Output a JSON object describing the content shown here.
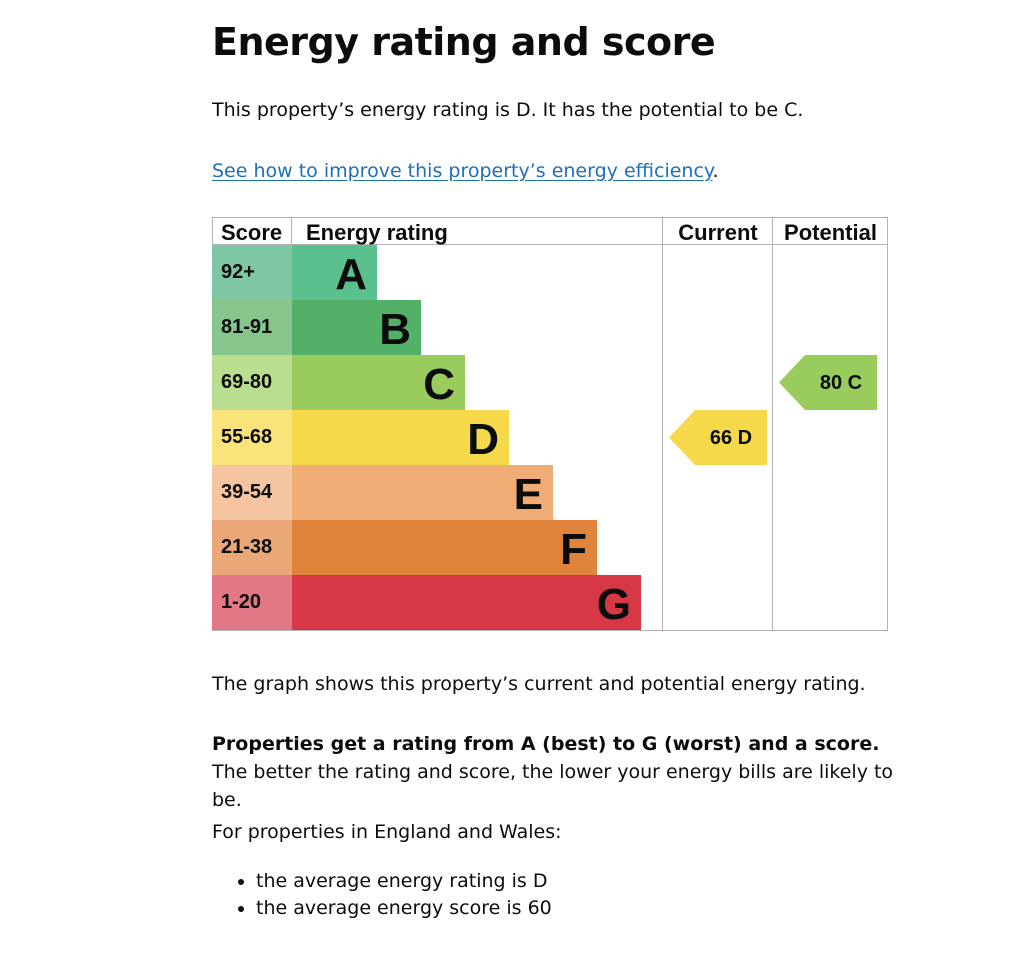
{
  "page": {
    "title": "Energy rating and score",
    "intro": "This property’s energy rating is D. It has the potential to be C.",
    "improve_link": "See how to improve this property’s energy efficiency",
    "improve_link_suffix": ".",
    "graph_caption": "The graph shows this property’s current and potential energy rating.",
    "rating_bold": "Properties get a rating from A (best) to G (worst) and a score.",
    "rating_rest": " The better the rating and score, the lower your energy bills are likely to be.",
    "region_intro": "For properties in England and Wales:",
    "averages": [
      "the average energy rating is D",
      "the average energy score is 60"
    ]
  },
  "chart_data": {
    "type": "bar",
    "headers": {
      "score": "Score",
      "rating": "Energy rating",
      "current": "Current",
      "potential": "Potential"
    },
    "bands": [
      {
        "letter": "A",
        "score": "92+",
        "color": "#5ac18e",
        "score_color": "#7ec6a4"
      },
      {
        "letter": "B",
        "score": "81-91",
        "color": "#52b069",
        "score_color": "#86c58c"
      },
      {
        "letter": "C",
        "score": "69-80",
        "color": "#99cc5c",
        "score_color": "#bade90"
      },
      {
        "letter": "D",
        "score": "55-68",
        "color": "#f6d94a",
        "score_color": "#fbe37c"
      },
      {
        "letter": "E",
        "score": "39-54",
        "color": "#efad75",
        "score_color": "#f4c5a0"
      },
      {
        "letter": "F",
        "score": "21-38",
        "color": "#e0843c",
        "score_color": "#eaa777"
      },
      {
        "letter": "G",
        "score": "1-20",
        "color": "#d63845",
        "score_color": "#e27785"
      }
    ],
    "current": {
      "score": 66,
      "letter": "D",
      "color": "#f6d94a"
    },
    "potential": {
      "score": 80,
      "letter": "C",
      "color": "#99cc5c"
    }
  }
}
